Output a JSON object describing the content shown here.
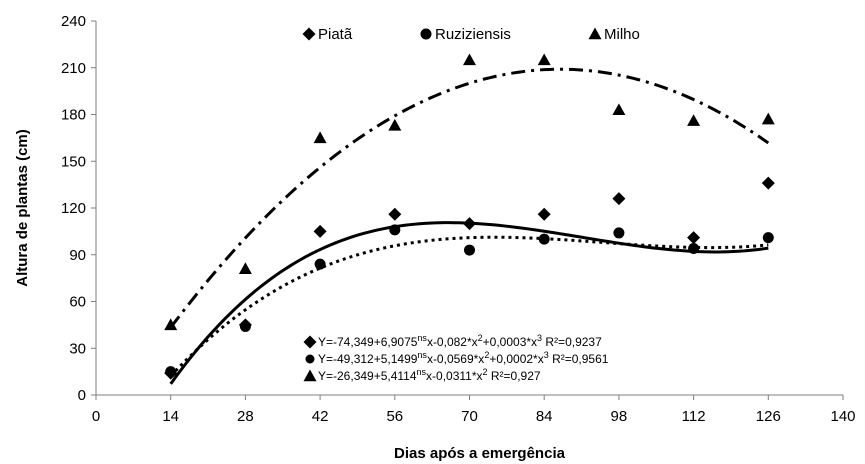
{
  "chart_data": {
    "type": "scatter",
    "xlabel": "Dias após a emergência",
    "ylabel": "Altura de plantas (cm)",
    "xlim": [
      0,
      140
    ],
    "ylim": [
      0,
      240
    ],
    "xticks": [
      0,
      14,
      28,
      42,
      56,
      70,
      84,
      98,
      112,
      126,
      140
    ],
    "yticks": [
      0,
      30,
      60,
      90,
      120,
      150,
      180,
      210,
      240
    ],
    "grid": false,
    "legend_position": "top",
    "series": [
      {
        "name": "Piatã",
        "marker": "diamond",
        "line_style": "solid",
        "x": [
          14,
          28,
          42,
          56,
          70,
          84,
          98,
          112,
          126
        ],
        "y": [
          14,
          45,
          105,
          116,
          110,
          116,
          126,
          101,
          136
        ],
        "equation_parts": [
          "Y=-74,349+6,9075",
          "ns",
          "x-0,082*x",
          "2",
          "+0,0003*x",
          "3",
          "  R²=0,9237"
        ],
        "coefficients": [
          -74.349,
          6.9075,
          -0.082,
          0.0003
        ]
      },
      {
        "name": "Ruziziensis",
        "marker": "circle",
        "line_style": "dotted",
        "x": [
          14,
          28,
          42,
          56,
          70,
          84,
          98,
          112,
          126
        ],
        "y": [
          15,
          44,
          84,
          106,
          93,
          100,
          104,
          94,
          101
        ],
        "equation_parts": [
          "Y=-49,312+5,1499",
          "ns",
          "x-0,0569*x",
          "2",
          "+0,0002*x",
          "3",
          "  R²=0,9561"
        ],
        "coefficients": [
          -49.312,
          5.1499,
          -0.0569,
          0.0002
        ]
      },
      {
        "name": "Milho",
        "marker": "triangle",
        "line_style": "dash-dot",
        "x": [
          14,
          28,
          42,
          56,
          70,
          84,
          98,
          112,
          126
        ],
        "y": [
          45,
          81,
          165,
          173,
          215,
          215,
          183,
          176,
          177
        ],
        "equation_parts": [
          "Y=-26,349+5,4114",
          "ns",
          "x-0,0311*x",
          "2",
          "  R²=0,927"
        ],
        "coefficients": [
          -26.349,
          5.4114,
          -0.0311
        ]
      }
    ]
  }
}
